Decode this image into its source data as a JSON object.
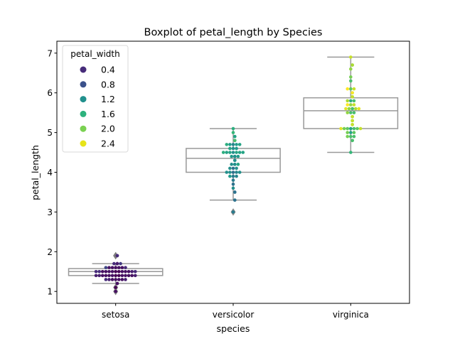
{
  "chart_data": {
    "type": "boxplot",
    "title": "Boxplot of petal_length by Species",
    "xlabel": "species",
    "ylabel": "petal_length",
    "ylim": [
      0.7,
      7.3
    ],
    "yticks": [
      1,
      2,
      3,
      4,
      5,
      6,
      7
    ],
    "categories": [
      "setosa",
      "versicolor",
      "virginica"
    ],
    "boxes": [
      {
        "category": "setosa",
        "q1": 1.4,
        "median": 1.5,
        "q3": 1.575,
        "whisker_low": 1.2,
        "whisker_high": 1.7,
        "fliers": [
          1.0,
          1.1,
          1.9,
          1.9
        ]
      },
      {
        "category": "versicolor",
        "q1": 4.0,
        "median": 4.35,
        "q3": 4.6,
        "whisker_low": 3.3,
        "whisker_high": 5.1,
        "fliers": [
          3.0
        ]
      },
      {
        "category": "virginica",
        "q1": 5.1,
        "median": 5.55,
        "q3": 5.875,
        "whisker_low": 4.5,
        "whisker_high": 6.9,
        "fliers": []
      }
    ],
    "swarm": [
      {
        "category": "setosa",
        "petal_length": [
          1.4,
          1.4,
          1.3,
          1.5,
          1.4,
          1.7,
          1.4,
          1.5,
          1.4,
          1.5,
          1.5,
          1.6,
          1.4,
          1.1,
          1.2,
          1.5,
          1.3,
          1.4,
          1.7,
          1.5,
          1.7,
          1.5,
          1.0,
          1.7,
          1.9,
          1.6,
          1.6,
          1.5,
          1.4,
          1.6,
          1.6,
          1.5,
          1.5,
          1.4,
          1.5,
          1.2,
          1.3,
          1.4,
          1.3,
          1.5,
          1.3,
          1.3,
          1.3,
          1.6,
          1.9,
          1.4,
          1.6,
          1.4,
          1.5,
          1.4
        ],
        "petal_width": [
          0.2,
          0.2,
          0.2,
          0.2,
          0.2,
          0.4,
          0.3,
          0.2,
          0.2,
          0.1,
          0.2,
          0.2,
          0.1,
          0.1,
          0.2,
          0.4,
          0.4,
          0.3,
          0.3,
          0.3,
          0.2,
          0.4,
          0.2,
          0.5,
          0.2,
          0.2,
          0.4,
          0.2,
          0.2,
          0.2,
          0.2,
          0.4,
          0.1,
          0.2,
          0.2,
          0.2,
          0.2,
          0.1,
          0.2,
          0.2,
          0.3,
          0.3,
          0.2,
          0.6,
          0.4,
          0.3,
          0.2,
          0.2,
          0.2,
          0.2
        ]
      },
      {
        "category": "versicolor",
        "petal_length": [
          4.7,
          4.5,
          4.9,
          4.0,
          4.6,
          4.5,
          4.7,
          3.3,
          4.6,
          3.9,
          3.5,
          4.2,
          4.0,
          4.7,
          3.6,
          4.4,
          4.5,
          4.1,
          4.5,
          3.9,
          4.8,
          4.0,
          4.9,
          4.7,
          4.3,
          4.4,
          4.8,
          5.0,
          4.5,
          3.5,
          3.8,
          3.7,
          3.9,
          5.1,
          4.5,
          4.5,
          4.7,
          4.4,
          4.1,
          4.0,
          4.4,
          4.6,
          4.0,
          3.3,
          4.2,
          4.2,
          4.2,
          4.3,
          3.0,
          4.1
        ],
        "petal_width": [
          1.4,
          1.5,
          1.5,
          1.3,
          1.5,
          1.3,
          1.6,
          1.0,
          1.3,
          1.4,
          1.0,
          1.5,
          1.0,
          1.4,
          1.3,
          1.4,
          1.5,
          1.0,
          1.5,
          1.1,
          1.8,
          1.3,
          1.5,
          1.2,
          1.3,
          1.4,
          1.4,
          1.7,
          1.5,
          1.0,
          1.1,
          1.0,
          1.2,
          1.6,
          1.5,
          1.6,
          1.5,
          1.3,
          1.3,
          1.3,
          1.2,
          1.4,
          1.2,
          1.0,
          1.3,
          1.2,
          1.3,
          1.3,
          1.1,
          1.3
        ]
      },
      {
        "category": "virginica",
        "petal_length": [
          6.0,
          5.1,
          5.9,
          5.6,
          5.8,
          6.6,
          4.5,
          6.3,
          5.8,
          6.1,
          5.1,
          5.3,
          5.5,
          5.0,
          5.1,
          5.3,
          5.5,
          6.7,
          6.9,
          5.0,
          5.7,
          4.9,
          6.7,
          4.9,
          5.7,
          6.0,
          4.8,
          4.9,
          5.6,
          5.8,
          6.1,
          6.4,
          5.6,
          5.1,
          5.6,
          6.1,
          5.6,
          5.5,
          4.8,
          5.4,
          5.6,
          5.1,
          5.1,
          5.9,
          5.7,
          5.2,
          5.0,
          5.2,
          5.4,
          5.1
        ],
        "petal_width": [
          2.5,
          1.9,
          2.1,
          1.8,
          2.2,
          2.1,
          1.7,
          1.8,
          1.8,
          2.5,
          2.0,
          1.9,
          2.1,
          2.0,
          2.4,
          2.3,
          1.8,
          2.2,
          2.3,
          1.5,
          2.3,
          2.0,
          2.0,
          1.8,
          2.1,
          1.8,
          1.8,
          1.8,
          2.1,
          1.6,
          1.9,
          2.0,
          2.2,
          1.5,
          1.4,
          2.3,
          2.4,
          1.8,
          1.8,
          2.1,
          2.4,
          2.3,
          1.9,
          2.3,
          2.5,
          2.3,
          1.9,
          2.0,
          2.3,
          1.8
        ]
      }
    ],
    "legend": {
      "title": "petal_width",
      "placement": "top-left",
      "entries": [
        {
          "label": "0.4",
          "color": "#472c7a"
        },
        {
          "label": "0.8",
          "color": "#3b518b"
        },
        {
          "label": "1.2",
          "color": "#21908d"
        },
        {
          "label": "1.6",
          "color": "#2db27d"
        },
        {
          "label": "2.0",
          "color": "#7ad151"
        },
        {
          "label": "2.4",
          "color": "#e7e419"
        }
      ]
    },
    "grid": false,
    "box_color": "#999999",
    "flier_color": "#7f7f7f"
  }
}
